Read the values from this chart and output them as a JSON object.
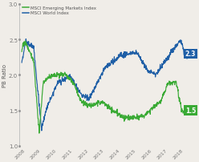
{
  "ylabel": "PB Ratio",
  "xlim": [
    2007.6,
    2018.55
  ],
  "ylim": [
    1.0,
    3.0
  ],
  "yticks": [
    1.0,
    1.5,
    2.0,
    2.5,
    3.0
  ],
  "xticks": [
    2008,
    2009,
    2010,
    2011,
    2012,
    2013,
    2014,
    2015,
    2016,
    2017,
    2018
  ],
  "world_color": "#1f5fa6",
  "em_color": "#3aaa35",
  "world_label": "MSCI World Index",
  "em_label": "MSCI Emerging Markets Index",
  "world_end_val": "2.3",
  "em_end_val": "1.5",
  "world_box_color": "#1f5fa6",
  "em_box_color": "#3aaa35",
  "background_color": "#f0ede8",
  "spine_color": "#bbbbbb",
  "tick_color": "#777777",
  "label_color": "#555555"
}
